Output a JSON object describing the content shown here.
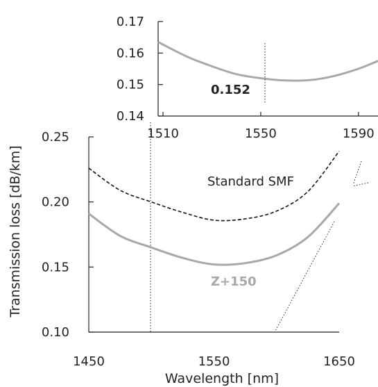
{
  "chart_data": [
    {
      "type": "line",
      "panel": "main",
      "xlabel": "Wavelength [nm]",
      "ylabel": "Transmission loss [dB/km]",
      "xlim": [
        1450,
        1650
      ],
      "ylim": [
        0.1,
        0.25
      ],
      "xticks": [
        "1450",
        "1550",
        "1650"
      ],
      "yticks": [
        "0.10",
        "0.15",
        "0.20",
        "0.25"
      ],
      "grid": false,
      "series": [
        {
          "name": "Standard SMF",
          "color": "#111111",
          "style": "dashed",
          "x": [
            1450,
            1475,
            1500,
            1525,
            1550,
            1575,
            1600,
            1625,
            1650
          ],
          "y": [
            0.226,
            0.209,
            0.2,
            0.192,
            0.186,
            0.187,
            0.193,
            0.208,
            0.239
          ]
        },
        {
          "name": "Z+150",
          "color": "#a8a8a8",
          "style": "solid",
          "x": [
            1450,
            1475,
            1500,
            1525,
            1550,
            1575,
            1600,
            1625,
            1650
          ],
          "y": [
            0.191,
            0.174,
            0.165,
            0.157,
            0.152,
            0.153,
            0.159,
            0.173,
            0.199
          ]
        }
      ]
    },
    {
      "type": "line",
      "panel": "inset",
      "xlim": [
        1508,
        1598
      ],
      "ylim": [
        0.14,
        0.17
      ],
      "xticks": [
        "1510",
        "1550",
        "1590"
      ],
      "yticks": [
        "0.14",
        "0.15",
        "0.16",
        "0.17"
      ],
      "grid": false,
      "annotation": {
        "x": 1550,
        "text": "0.152"
      },
      "series": [
        {
          "name": "Z+150",
          "color": "#a8a8a8",
          "style": "solid",
          "x": [
            1508,
            1520,
            1530,
            1540,
            1550,
            1560,
            1570,
            1580,
            1590,
            1598
          ],
          "y": [
            0.1635,
            0.1588,
            0.1558,
            0.1533,
            0.152,
            0.1513,
            0.1514,
            0.1527,
            0.155,
            0.1575
          ]
        }
      ]
    }
  ]
}
